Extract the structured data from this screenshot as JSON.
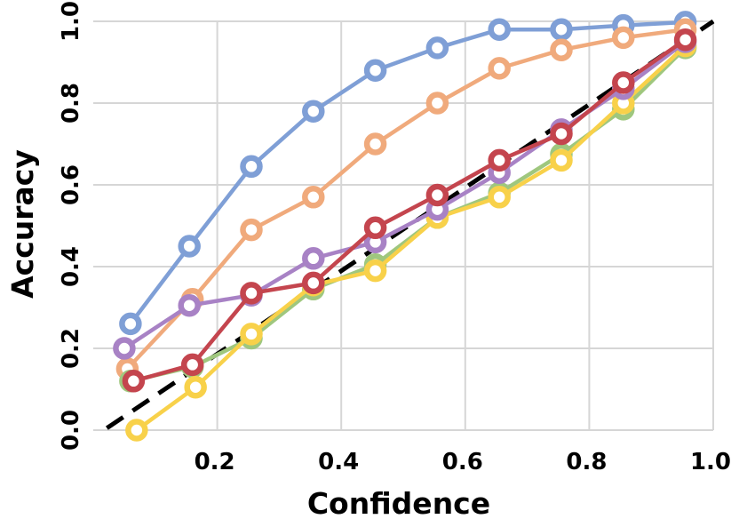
{
  "chart_data": {
    "type": "line",
    "title": "",
    "xlabel": "Confidence",
    "ylabel": "Accuracy",
    "xlim": [
      0.0,
      1.0
    ],
    "ylim": [
      0.0,
      1.0
    ],
    "x_ticks": [
      0.2,
      0.4,
      0.6,
      0.8,
      1.0
    ],
    "x_tick_labels": [
      "0.2",
      "0.4",
      "0.6",
      "0.8",
      "1.0"
    ],
    "y_ticks": [
      0.0,
      0.2,
      0.4,
      0.6,
      0.8,
      1.0
    ],
    "y_tick_labels": [
      "0.0",
      "0.2",
      "0.4",
      "0.6",
      "0.8",
      "1.0"
    ],
    "grid": true,
    "legend": false,
    "reference_line": {
      "name": "perfect-calibration",
      "style": "dashed",
      "color": "#000000",
      "x": [
        0.0,
        1.0
      ],
      "y": [
        0.0,
        1.0
      ]
    },
    "series": [
      {
        "name": "series-blue",
        "color": "#7f9fd6",
        "x": [
          0.06,
          0.155,
          0.255,
          0.355,
          0.455,
          0.555,
          0.655,
          0.755,
          0.855,
          0.955
        ],
        "y": [
          0.26,
          0.45,
          0.645,
          0.78,
          0.88,
          0.935,
          0.98,
          0.98,
          0.99,
          0.998
        ]
      },
      {
        "name": "series-orange",
        "color": "#f0aa7c",
        "x": [
          0.055,
          0.16,
          0.255,
          0.355,
          0.455,
          0.555,
          0.655,
          0.755,
          0.855,
          0.955
        ],
        "y": [
          0.15,
          0.32,
          0.49,
          0.57,
          0.7,
          0.8,
          0.885,
          0.93,
          0.96,
          0.98
        ]
      },
      {
        "name": "series-green",
        "color": "#9fc77e",
        "x": [
          0.06,
          0.16,
          0.255,
          0.355,
          0.455,
          0.555,
          0.655,
          0.755,
          0.855,
          0.955
        ],
        "y": [
          0.12,
          0.155,
          0.225,
          0.345,
          0.405,
          0.52,
          0.58,
          0.675,
          0.785,
          0.935
        ]
      },
      {
        "name": "series-yellow",
        "color": "#f8d14a",
        "x": [
          0.07,
          0.165,
          0.255,
          0.355,
          0.455,
          0.555,
          0.655,
          0.755,
          0.855,
          0.955
        ],
        "y": [
          0.0,
          0.105,
          0.235,
          0.355,
          0.39,
          0.52,
          0.57,
          0.66,
          0.8,
          0.94
        ]
      },
      {
        "name": "series-purple",
        "color": "#a882c5",
        "x": [
          0.05,
          0.155,
          0.255,
          0.355,
          0.455,
          0.555,
          0.655,
          0.755,
          0.855,
          0.955
        ],
        "y": [
          0.2,
          0.305,
          0.33,
          0.42,
          0.46,
          0.54,
          0.63,
          0.735,
          0.835,
          0.95
        ]
      },
      {
        "name": "series-red",
        "color": "#c4454e",
        "x": [
          0.065,
          0.16,
          0.255,
          0.355,
          0.455,
          0.555,
          0.655,
          0.755,
          0.855,
          0.955
        ],
        "y": [
          0.12,
          0.16,
          0.335,
          0.36,
          0.495,
          0.575,
          0.66,
          0.725,
          0.85,
          0.955
        ]
      }
    ]
  }
}
